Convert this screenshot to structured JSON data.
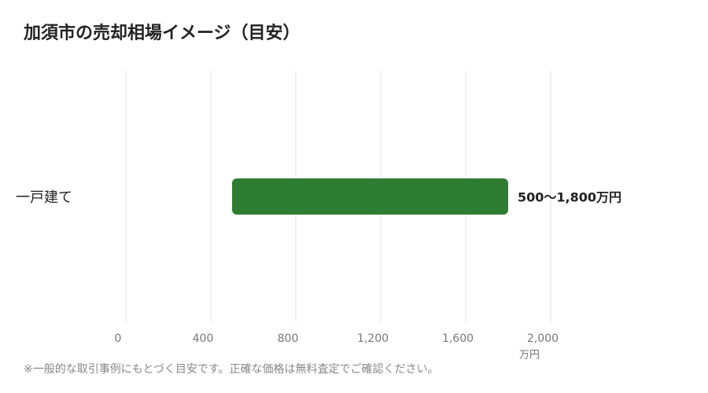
{
  "chart_data": {
    "type": "range-bar",
    "title": "加須市の売却相場イメージ（目安）",
    "categories": [
      "一戸建て"
    ],
    "low": [
      500
    ],
    "high": [
      1800
    ],
    "value_labels": [
      "500〜1,800万円"
    ],
    "color": "#2e7d32",
    "xlim": [
      0,
      2000
    ],
    "xticks": [
      0,
      400,
      800,
      {
        "value": 1200,
        "label": "1,200"
      },
      {
        "value": 1600,
        "label": "1,600"
      },
      {
        "value": 2000,
        "label": "2,000"
      }
    ],
    "xlabel": "万円",
    "grid": true,
    "note": "※一般的な取引事例にもとづく目安です。正確な価格は無料査定でご確認ください。"
  }
}
